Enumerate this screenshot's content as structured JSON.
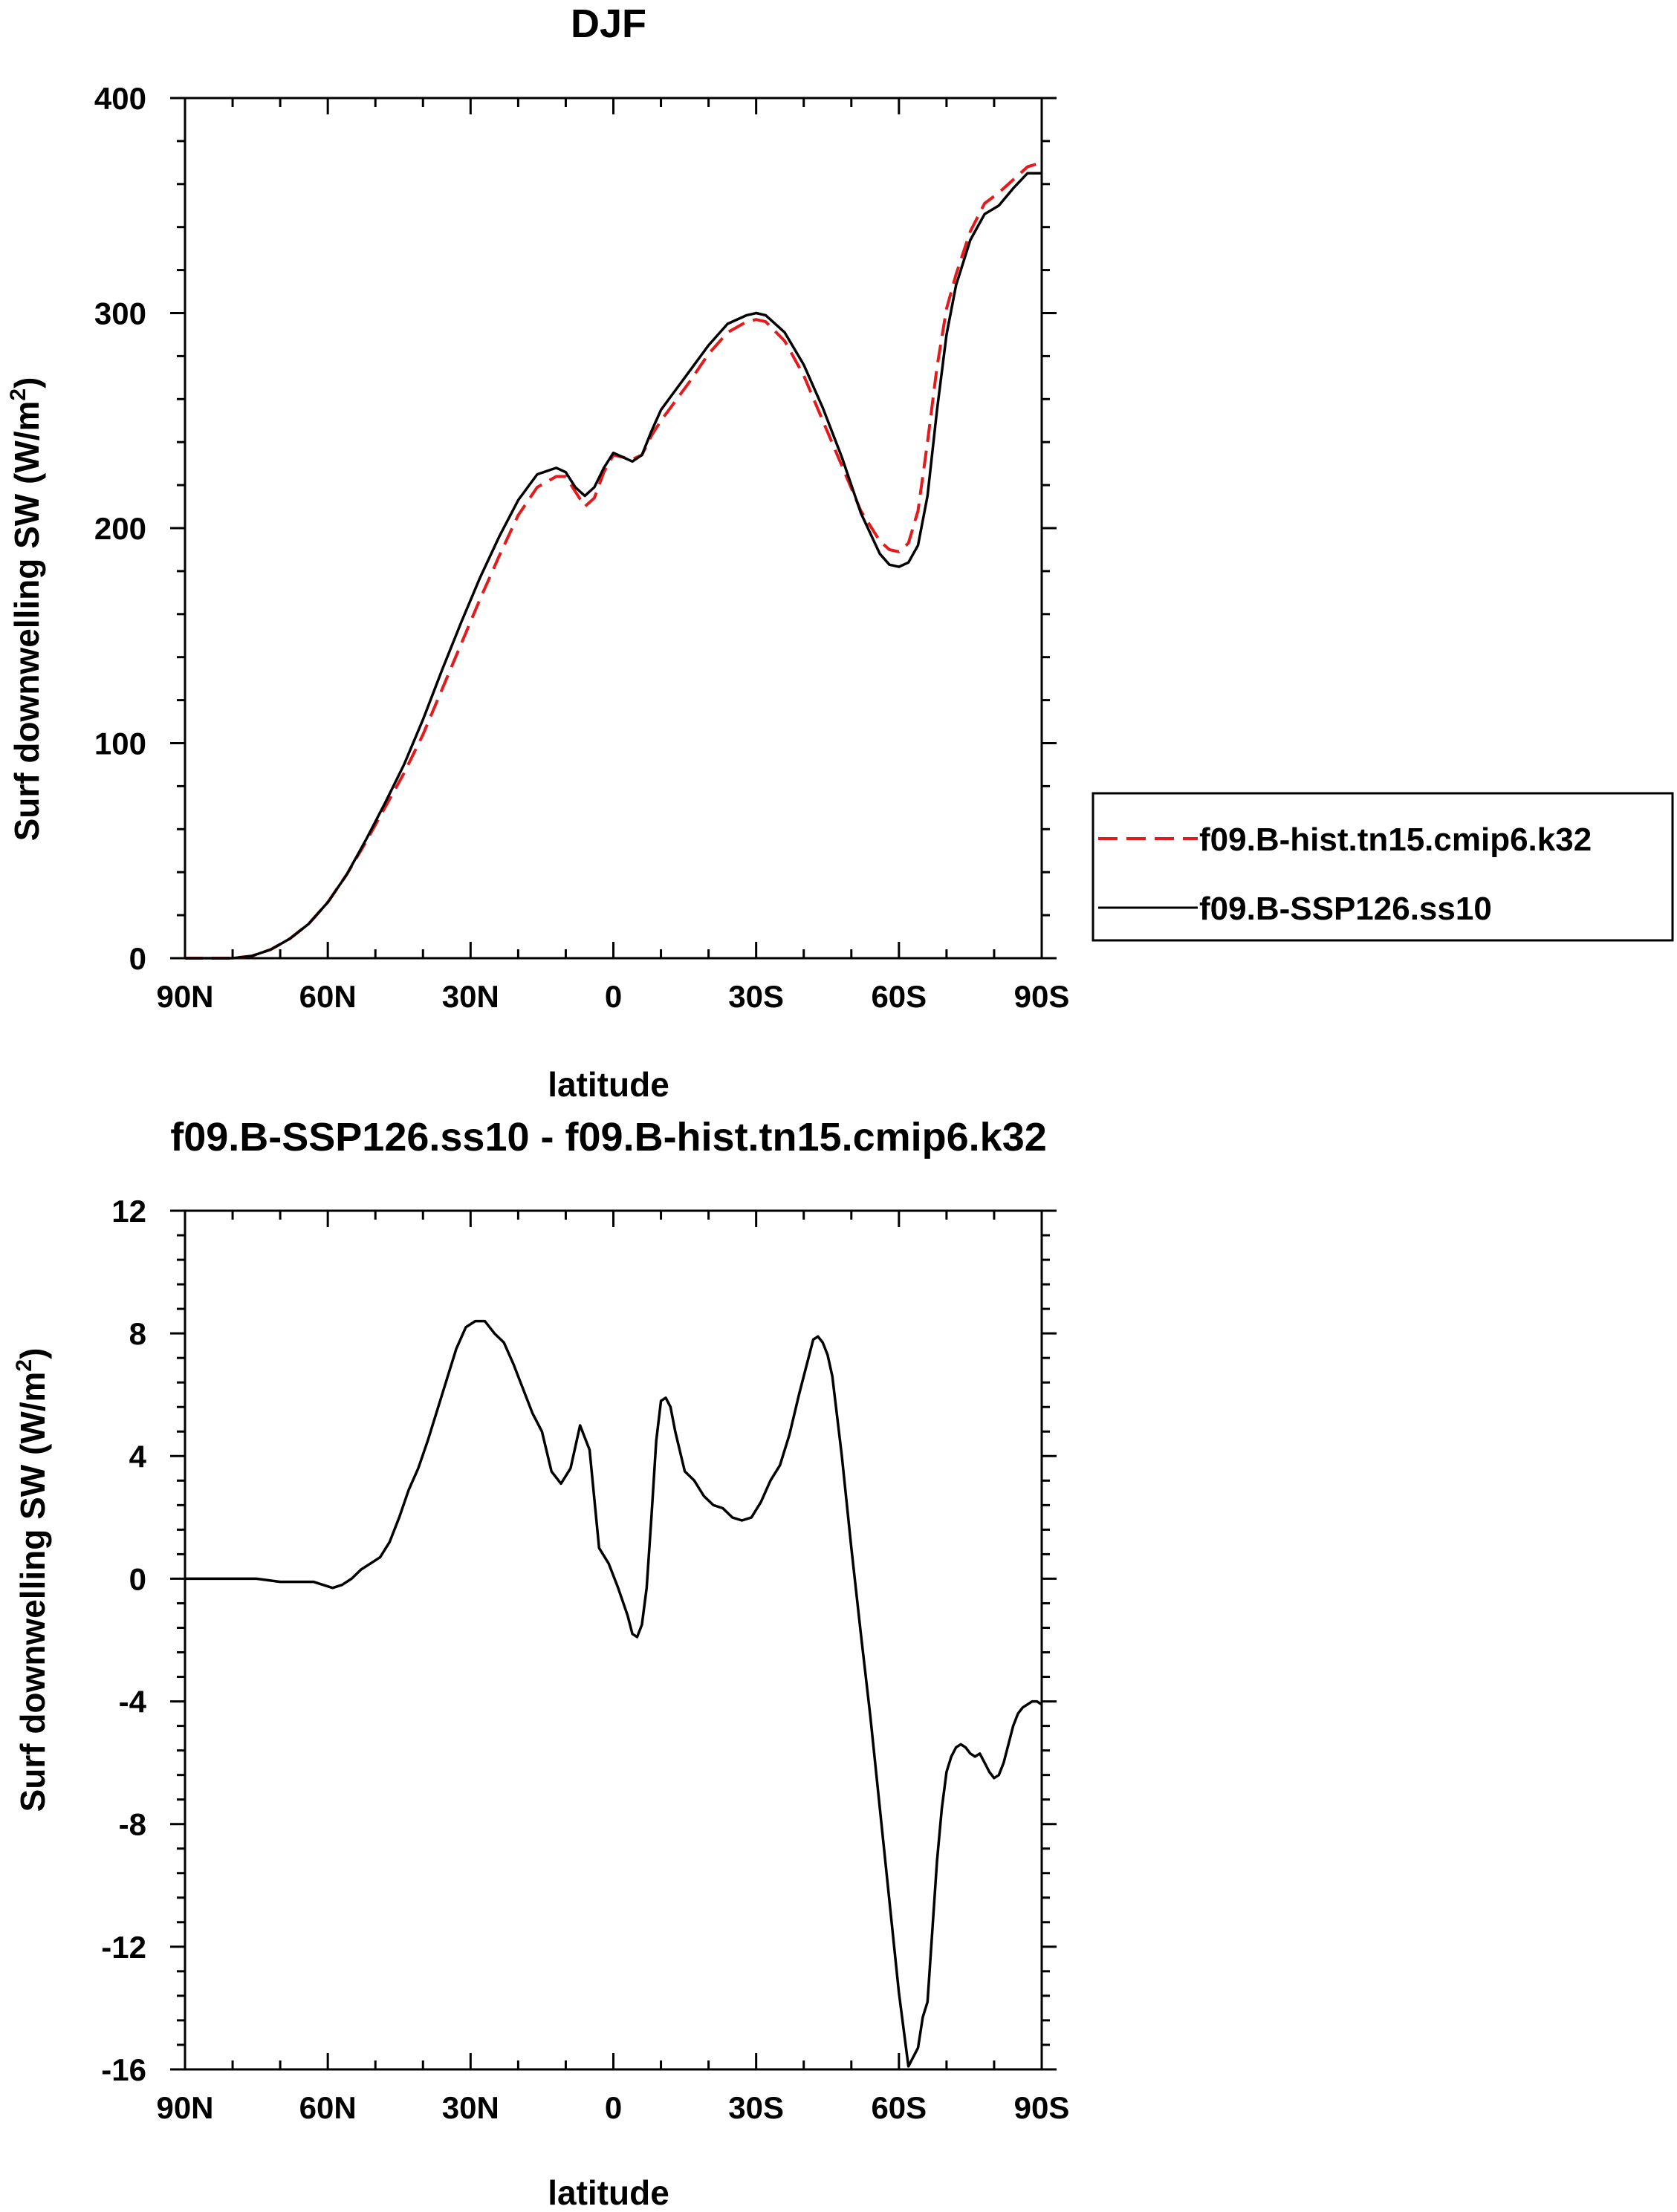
{
  "chart_data": [
    {
      "type": "line",
      "title": "DJF",
      "xlabel": "latitude",
      "ylabel": "Surf downwelling SW (W/m",
      "ylabel_sup": "2",
      "ylabel_end": ")",
      "xlim": [
        90,
        -90
      ],
      "ylim": [
        0,
        400
      ],
      "x_ticks": [
        {
          "value": 90,
          "label": "90N"
        },
        {
          "value": 60,
          "label": "60N"
        },
        {
          "value": 30,
          "label": "30N"
        },
        {
          "value": 0,
          "label": "0"
        },
        {
          "value": -30,
          "label": "30S"
        },
        {
          "value": -60,
          "label": "60S"
        },
        {
          "value": -90,
          "label": "90S"
        }
      ],
      "y_ticks": [
        {
          "value": 0,
          "label": "0"
        },
        {
          "value": 100,
          "label": "100"
        },
        {
          "value": 200,
          "label": "200"
        },
        {
          "value": 300,
          "label": "300"
        },
        {
          "value": 400,
          "label": "400"
        }
      ],
      "legend": {
        "position": "right",
        "entries": [
          "f09.B-hist.tn15.cmip6.k32",
          "f09.B-SSP126.ss10"
        ]
      },
      "series": [
        {
          "name": "f09.B-hist.tn15.cmip6.k32",
          "color": "#e41a1c",
          "dash": true,
          "x": [
            90,
            85,
            80,
            76,
            72,
            68,
            64,
            60,
            56,
            52,
            48,
            44,
            40,
            36,
            32,
            28,
            24,
            20,
            16,
            12,
            10,
            8,
            6,
            4,
            2,
            0,
            -2,
            -4,
            -6,
            -8,
            -10,
            -12,
            -16,
            -20,
            -24,
            -28,
            -30,
            -32,
            -36,
            -40,
            -44,
            -48,
            -52,
            -56,
            -58,
            -60,
            -62,
            -64,
            -66,
            -68,
            -70,
            -72,
            -75,
            -78,
            -81,
            -84,
            -87,
            -90
          ],
          "y": [
            0,
            0,
            0,
            1,
            4,
            9,
            16,
            26,
            39,
            54,
            70,
            86,
            104,
            125,
            146,
            167,
            187,
            206,
            219,
            224,
            224,
            217,
            210,
            214,
            226,
            234,
            233,
            232,
            234,
            243,
            250,
            256,
            268,
            281,
            291,
            296,
            297,
            296,
            287,
            271,
            250,
            229,
            208,
            194,
            190,
            189,
            193,
            208,
            240,
            275,
            302,
            318,
            338,
            351,
            356,
            362,
            368,
            370
          ]
        },
        {
          "name": "f09.B-SSP126.ss10",
          "color": "#000000",
          "dash": false,
          "x": [
            90,
            85,
            80,
            76,
            72,
            68,
            64,
            60,
            56,
            52,
            48,
            44,
            40,
            36,
            32,
            28,
            24,
            20,
            16,
            12,
            10,
            8,
            6,
            4,
            2,
            0,
            -2,
            -4,
            -6,
            -8,
            -10,
            -12,
            -16,
            -20,
            -24,
            -28,
            -30,
            -32,
            -36,
            -40,
            -44,
            -48,
            -52,
            -56,
            -58,
            -60,
            -62,
            -64,
            -66,
            -68,
            -70,
            -72,
            -75,
            -78,
            -81,
            -84,
            -87,
            -90
          ],
          "y": [
            0,
            0,
            0,
            1,
            4,
            9,
            16,
            26,
            39,
            55,
            72,
            90,
            111,
            134,
            156,
            177,
            196,
            213,
            225,
            228,
            226,
            219,
            215,
            219,
            228,
            235,
            233,
            231,
            234,
            245,
            255,
            261,
            273,
            285,
            295,
            299,
            300,
            299,
            291,
            276,
            256,
            233,
            207,
            188,
            183,
            182,
            184,
            192,
            215,
            255,
            290,
            313,
            334,
            346,
            350,
            358,
            365,
            365
          ]
        }
      ]
    },
    {
      "type": "line",
      "title": "f09.B-SSP126.ss10 - f09.B-hist.tn15.cmip6.k32",
      "xlabel": "latitude",
      "ylabel": "Surf downwelling SW (W/m",
      "ylabel_sup": "2",
      "ylabel_end": ")",
      "xlim": [
        90,
        -90
      ],
      "ylim": [
        -16,
        12
      ],
      "x_ticks": [
        {
          "value": 90,
          "label": "90N"
        },
        {
          "value": 60,
          "label": "60N"
        },
        {
          "value": 30,
          "label": "30N"
        },
        {
          "value": 0,
          "label": "0"
        },
        {
          "value": -30,
          "label": "30S"
        },
        {
          "value": -60,
          "label": "60S"
        },
        {
          "value": -90,
          "label": "90S"
        }
      ],
      "y_ticks": [
        {
          "value": -16,
          "label": "-16"
        },
        {
          "value": -12,
          "label": "-12"
        },
        {
          "value": -8,
          "label": "-8"
        },
        {
          "value": -4,
          "label": "-4"
        },
        {
          "value": 0,
          "label": "0"
        },
        {
          "value": 4,
          "label": "4"
        },
        {
          "value": 8,
          "label": "8"
        },
        {
          "value": 12,
          "label": "12"
        }
      ],
      "series": [
        {
          "name": "f09.B-SSP126.ss10 - f09.B-hist.tn15.cmip6.k32",
          "color": "#000000",
          "dash": false,
          "x": [
            90,
            80,
            75,
            70,
            66,
            63,
            61,
            59,
            57,
            55,
            53,
            51,
            49,
            47,
            45,
            43,
            41,
            39,
            37,
            35,
            33,
            31,
            29,
            27,
            25,
            23,
            21,
            19,
            17,
            15,
            13,
            11,
            9,
            7,
            5,
            3,
            1,
            -1,
            -3,
            -4,
            -5,
            -6,
            -7,
            -8,
            -9,
            -10,
            -11,
            -12,
            -13,
            -15,
            -17,
            -19,
            -21,
            -23,
            -25,
            -27,
            -29,
            -31,
            -33,
            -35,
            -37,
            -39,
            -41,
            -42,
            -43,
            -44,
            -45,
            -46,
            -48,
            -50,
            -52,
            -54,
            -56,
            -58,
            -60,
            -62,
            -64,
            -65,
            -66,
            -67,
            -68,
            -69,
            -70,
            -71,
            -72,
            -73,
            -74,
            -75,
            -76,
            -77,
            -78,
            -79,
            -80,
            -81,
            -82,
            -83,
            -84,
            -85,
            -86,
            -87,
            -88,
            -89,
            -90
          ],
          "y": [
            0,
            0,
            0,
            -0.1,
            -0.1,
            -0.1,
            -0.2,
            -0.3,
            -0.2,
            0,
            0.3,
            0.5,
            0.7,
            1.2,
            2.0,
            2.9,
            3.6,
            4.5,
            5.5,
            6.5,
            7.5,
            8.2,
            8.4,
            8.4,
            8.0,
            7.7,
            7.0,
            6.2,
            5.4,
            4.8,
            3.5,
            3.1,
            3.6,
            5.0,
            4.2,
            1.0,
            0.5,
            -0.3,
            -1.2,
            -1.8,
            -1.9,
            -1.5,
            -0.3,
            2.0,
            4.5,
            5.8,
            5.9,
            5.6,
            4.8,
            3.5,
            3.2,
            2.7,
            2.4,
            2.3,
            2.0,
            1.9,
            2.0,
            2.5,
            3.2,
            3.7,
            4.7,
            6.0,
            7.2,
            7.8,
            7.9,
            7.7,
            7.3,
            6.6,
            4.0,
            1.0,
            -1.8,
            -4.5,
            -7.5,
            -10.5,
            -13.5,
            -15.9,
            -15.3,
            -14.3,
            -13.8,
            -11.5,
            -9.2,
            -7.5,
            -6.3,
            -5.8,
            -5.5,
            -5.4,
            -5.5,
            -5.7,
            -5.8,
            -5.7,
            -6.0,
            -6.3,
            -6.5,
            -6.4,
            -6.0,
            -5.4,
            -4.8,
            -4.4,
            -4.2,
            -4.1,
            -4.0,
            -4.0,
            -4.1
          ]
        }
      ]
    }
  ]
}
